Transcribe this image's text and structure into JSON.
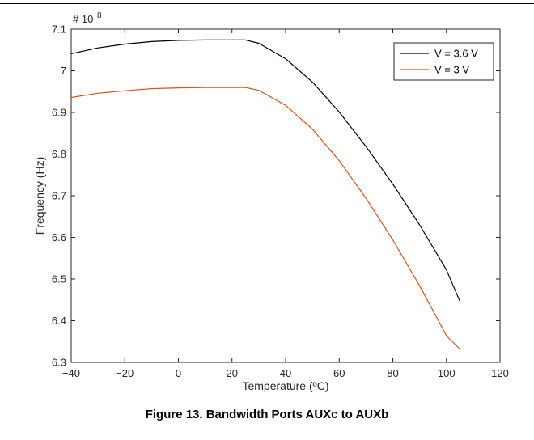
{
  "caption": "Figure 13. Bandwidth Ports AUXc to AUXb",
  "chart_data": {
    "type": "line",
    "title": "",
    "xlabel": "Temperature (ºC)",
    "ylabel": "Frequency (Hz)",
    "y_multiplier_base": "# 10",
    "y_multiplier_exp": "8",
    "xlim": [
      -40,
      120
    ],
    "ylim": [
      6.3,
      7.1
    ],
    "xticks": [
      -40,
      -20,
      0,
      20,
      40,
      60,
      80,
      100,
      120
    ],
    "xtick_labels": [
      "−40",
      "−20",
      "0",
      "20",
      "40",
      "60",
      "80",
      "100",
      "120"
    ],
    "yticks": [
      6.3,
      6.4,
      6.5,
      6.6,
      6.7,
      6.8,
      6.9,
      7.0,
      7.1
    ],
    "ytick_labels": [
      "6.3",
      "6.4",
      "6.5",
      "6.6",
      "6.7",
      "6.8",
      "6.9",
      "7",
      "7.1"
    ],
    "legend_position": "top-right",
    "grid": false,
    "series": [
      {
        "name": "V = 3.6 V",
        "color": "#000000",
        "x": [
          -40,
          -30,
          -20,
          -10,
          0,
          10,
          20,
          25,
          30,
          40,
          50,
          60,
          70,
          80,
          90,
          100,
          105
        ],
        "y": [
          7.041,
          7.055,
          7.064,
          7.07,
          7.073,
          7.074,
          7.074,
          7.074,
          7.066,
          7.029,
          6.973,
          6.901,
          6.818,
          6.728,
          6.63,
          6.522,
          6.447
        ]
      },
      {
        "name": "V = 3 V",
        "color": "#D95319",
        "x": [
          -40,
          -30,
          -20,
          -10,
          0,
          10,
          20,
          25,
          30,
          40,
          50,
          60,
          70,
          80,
          90,
          100,
          105
        ],
        "y": [
          6.936,
          6.946,
          6.952,
          6.957,
          6.959,
          6.96,
          6.96,
          6.96,
          6.953,
          6.917,
          6.86,
          6.784,
          6.694,
          6.594,
          6.484,
          6.364,
          6.332
        ]
      }
    ]
  }
}
